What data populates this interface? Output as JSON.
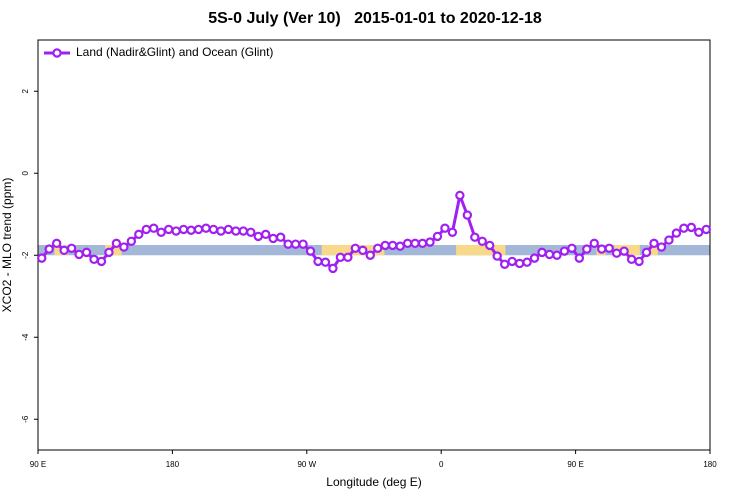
{
  "chart_data": {
    "type": "line",
    "title": "5S-0 July (Ver 10)   2015-01-01 to 2020-12-18",
    "x_label": "Longitude (deg E)",
    "y_label": "XCO2 - MLO trend (ppm)",
    "xlim": [
      90,
      540
    ],
    "xticks": [
      {
        "value": 90,
        "label": "90 E"
      },
      {
        "value": 180,
        "label": "180"
      },
      {
        "value": 270,
        "label": "90 W"
      },
      {
        "value": 360,
        "label": "0"
      },
      {
        "value": 450,
        "label": "90 E"
      },
      {
        "value": 540,
        "label": "180"
      }
    ],
    "ylim": [
      -6.75,
      3.25
    ],
    "yticks": [
      2,
      0,
      -2,
      -4,
      -6
    ],
    "legend": "topleft",
    "band": {
      "range": [
        -2.0,
        -1.75
      ],
      "color": "#a3b8d8",
      "segment_color": "#f8d98a",
      "segments": [
        {
          "start": 101,
          "end": 110
        },
        {
          "start": 135,
          "end": 146
        },
        {
          "start": 280,
          "end": 322
        },
        {
          "start": 370,
          "end": 403
        },
        {
          "start": 464,
          "end": 470
        },
        {
          "start": 476,
          "end": 493
        },
        {
          "start": 499,
          "end": 505
        }
      ]
    },
    "x": [
      92.5,
      97.5,
      102.5,
      107.5,
      112.5,
      117.5,
      122.5,
      127.5,
      132.5,
      137.5,
      142.5,
      147.5,
      152.5,
      157.5,
      162.5,
      167.5,
      172.5,
      177.5,
      182.5,
      187.5,
      192.5,
      197.5,
      202.5,
      207.5,
      212.5,
      217.5,
      222.5,
      227.5,
      232.5,
      237.5,
      242.5,
      247.5,
      252.5,
      257.5,
      262.5,
      267.5,
      272.5,
      277.5,
      282.5,
      287.5,
      292.5,
      297.5,
      302.5,
      307.5,
      312.5,
      317.5,
      322.5,
      327.5,
      332.5,
      337.5,
      342.5,
      347.5,
      352.5,
      357.5,
      362.5,
      367.5,
      372.5,
      377.5,
      382.5,
      387.5,
      392.5,
      397.5,
      402.5,
      407.5,
      412.5,
      417.5,
      422.5,
      427.5,
      432.5,
      437.5,
      442.5,
      447.5,
      452.5,
      457.5,
      462.5,
      467.5,
      472.5,
      477.5,
      482.5,
      487.5,
      492.5,
      497.5,
      502.5,
      507.5,
      512.5,
      517.5,
      522.5,
      527.5,
      532.5,
      537.5
    ],
    "series": [
      {
        "name": "Land (Nadir&Glint) and Ocean (Glint)",
        "color": "#a020f0",
        "values": [
          -2.07,
          -1.85,
          -1.71,
          -1.88,
          -1.83,
          -1.98,
          -1.93,
          -2.1,
          -2.15,
          -1.93,
          -1.71,
          -1.8,
          -1.66,
          -1.49,
          -1.37,
          -1.34,
          -1.44,
          -1.37,
          -1.41,
          -1.37,
          -1.39,
          -1.37,
          -1.34,
          -1.37,
          -1.41,
          -1.37,
          -1.41,
          -1.41,
          -1.44,
          -1.54,
          -1.49,
          -1.59,
          -1.56,
          -1.73,
          -1.73,
          -1.73,
          -1.9,
          -2.15,
          -2.17,
          -2.32,
          -2.05,
          -2.05,
          -1.83,
          -1.88,
          -2.0,
          -1.83,
          -1.76,
          -1.76,
          -1.78,
          -1.71,
          -1.71,
          -1.71,
          -1.68,
          -1.54,
          -1.34,
          -1.44,
          -0.54,
          -1.02,
          -1.56,
          -1.66,
          -1.76,
          -2.02,
          -2.22,
          -2.15,
          -2.2,
          -2.17,
          -2.07,
          -1.93,
          -1.98,
          -2.0,
          -1.9,
          -1.83,
          -2.07,
          -1.85,
          -1.71,
          -1.85,
          -1.83,
          -1.95,
          -1.9,
          -2.1,
          -2.15,
          -1.93,
          -1.71,
          -1.8,
          -1.63,
          -1.46,
          -1.34,
          -1.32,
          -1.44,
          -1.37
        ]
      }
    ]
  }
}
